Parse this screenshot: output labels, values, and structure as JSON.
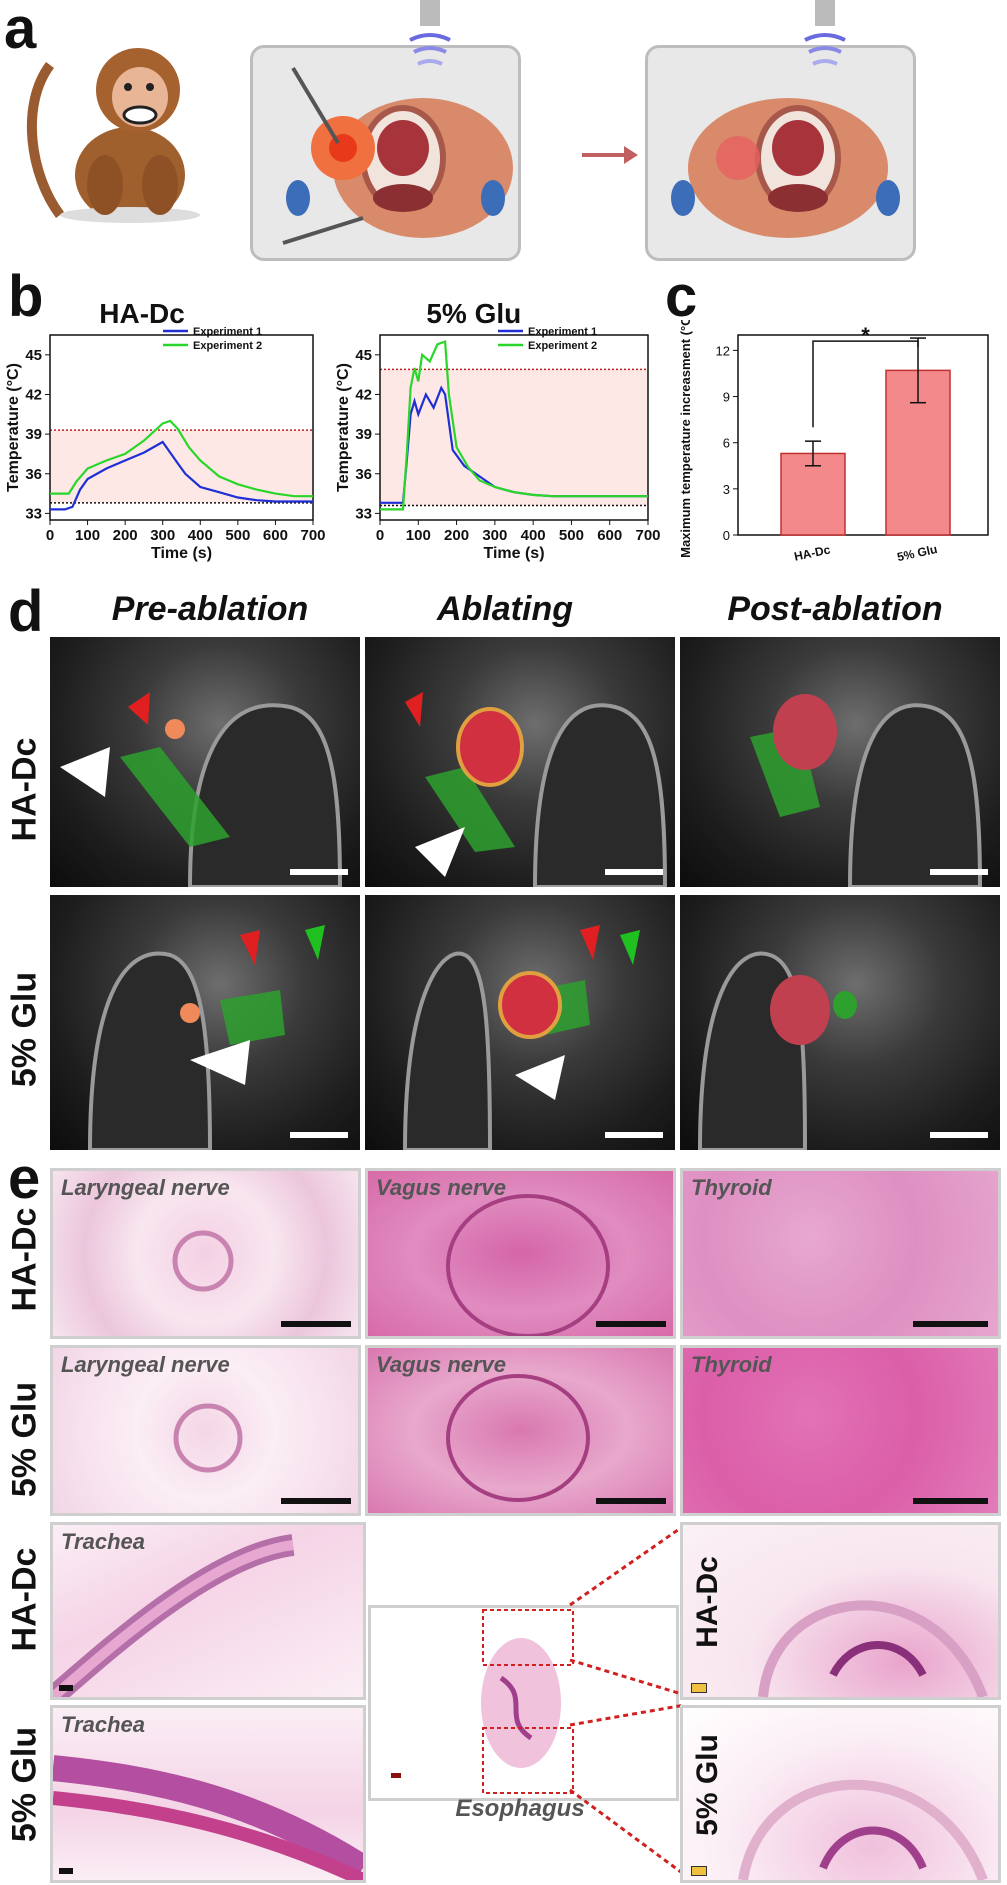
{
  "panels": {
    "a": "a",
    "b": "b",
    "c": "c",
    "d": "d",
    "e": "e"
  },
  "b": {
    "left": {
      "title": "HA-Dc",
      "legend": [
        "Experiment 1",
        "Experiment 2"
      ],
      "xlabel": "Time (s)",
      "ylabel": "Temperature (°C)",
      "xticks": [
        "0",
        "100",
        "200",
        "300",
        "400",
        "500",
        "600",
        "700"
      ],
      "yticks": [
        "33",
        "36",
        "39",
        "42",
        "45"
      ]
    },
    "right": {
      "title": "5% Glu",
      "legend": [
        "Experiment 1",
        "Experiment 2"
      ],
      "xlabel": "Time (s)",
      "ylabel": "Temperature (°C)",
      "xticks": [
        "0",
        "100",
        "200",
        "300",
        "400",
        "500",
        "600",
        "700"
      ],
      "yticks": [
        "33",
        "36",
        "39",
        "42",
        "45"
      ]
    }
  },
  "c": {
    "ylabel": "Maximum temperature increasment (°C)",
    "yticks": [
      "0",
      "3",
      "6",
      "9",
      "12"
    ],
    "categories": [
      "HA-Dc",
      "5% Glu"
    ],
    "significance": "*"
  },
  "d": {
    "columns": [
      "Pre-ablation",
      "Ablating",
      "Post-ablation"
    ],
    "rows": [
      "HA-Dc",
      "5% Glu"
    ]
  },
  "e": {
    "rows_top": [
      "HA-Dc",
      "5% Glu"
    ],
    "tile_labels": [
      "Laryngeal nerve",
      "Vagus nerve",
      "Thyroid"
    ],
    "bottom_rows": [
      "HA-Dc",
      "5% Glu"
    ],
    "trachea_label": "Trachea",
    "esophagus_label": "Esophagus",
    "zoom_rows": [
      "HA-Dc",
      "5% Glu"
    ]
  },
  "chart_data": [
    {
      "type": "line",
      "title": "HA-Dc",
      "xlabel": "Time (s)",
      "ylabel": "Temperature (°C)",
      "xlim": [
        0,
        700
      ],
      "ylim": [
        32.5,
        46.5
      ],
      "threshold_lines": [
        39.3,
        33.8
      ],
      "series": [
        {
          "name": "Experiment 1",
          "color": "#1f2fd6",
          "x": [
            0,
            40,
            60,
            80,
            100,
            150,
            200,
            250,
            300,
            320,
            340,
            360,
            400,
            450,
            500,
            550,
            600,
            650,
            700
          ],
          "y": [
            33.3,
            33.3,
            33.5,
            34.8,
            35.6,
            36.4,
            37.0,
            37.6,
            38.4,
            37.6,
            36.8,
            36.0,
            35.0,
            34.6,
            34.2,
            34.0,
            33.9,
            33.9,
            33.9
          ]
        },
        {
          "name": "Experiment 2",
          "color": "#29d629",
          "x": [
            0,
            50,
            70,
            100,
            150,
            200,
            250,
            300,
            320,
            340,
            370,
            400,
            450,
            500,
            550,
            600,
            650,
            700
          ],
          "y": [
            34.5,
            34.5,
            35.4,
            36.4,
            37.0,
            37.5,
            38.5,
            39.8,
            40.0,
            39.4,
            38.0,
            37.0,
            35.8,
            35.2,
            34.8,
            34.5,
            34.3,
            34.3
          ]
        }
      ]
    },
    {
      "type": "line",
      "title": "5% Glu",
      "xlabel": "Time (s)",
      "ylabel": "Temperature (°C)",
      "xlim": [
        0,
        700
      ],
      "ylim": [
        32.5,
        46.5
      ],
      "threshold_lines": [
        43.9,
        33.6
      ],
      "series": [
        {
          "name": "Experiment 1",
          "color": "#1f2fd6",
          "x": [
            0,
            60,
            70,
            80,
            90,
            100,
            120,
            140,
            160,
            170,
            190,
            220,
            260,
            300,
            350,
            400,
            450,
            500,
            600,
            700
          ],
          "y": [
            33.8,
            33.8,
            37.0,
            40.5,
            41.5,
            40.5,
            42.0,
            41.0,
            42.5,
            42.0,
            37.8,
            36.6,
            35.8,
            35.0,
            34.6,
            34.4,
            34.3,
            34.3,
            34.3,
            34.3
          ]
        },
        {
          "name": "Experiment 2",
          "color": "#29d629",
          "x": [
            0,
            60,
            70,
            80,
            90,
            100,
            110,
            130,
            150,
            170,
            180,
            200,
            230,
            260,
            300,
            350,
            400,
            450,
            500,
            600,
            700
          ],
          "y": [
            33.3,
            33.3,
            37.5,
            42.5,
            44.0,
            43.0,
            45.0,
            44.5,
            45.8,
            46.0,
            42.0,
            38.0,
            36.5,
            35.5,
            35.0,
            34.6,
            34.4,
            34.3,
            34.3,
            34.3,
            34.3
          ]
        }
      ]
    },
    {
      "type": "bar",
      "ylabel": "Maximum temperature increasment (°C)",
      "categories": [
        "HA-Dc",
        "5% Glu"
      ],
      "values": [
        5.3,
        10.7
      ],
      "errors": [
        0.8,
        2.1
      ],
      "ylim": [
        0,
        13
      ],
      "annotation": "*"
    }
  ]
}
